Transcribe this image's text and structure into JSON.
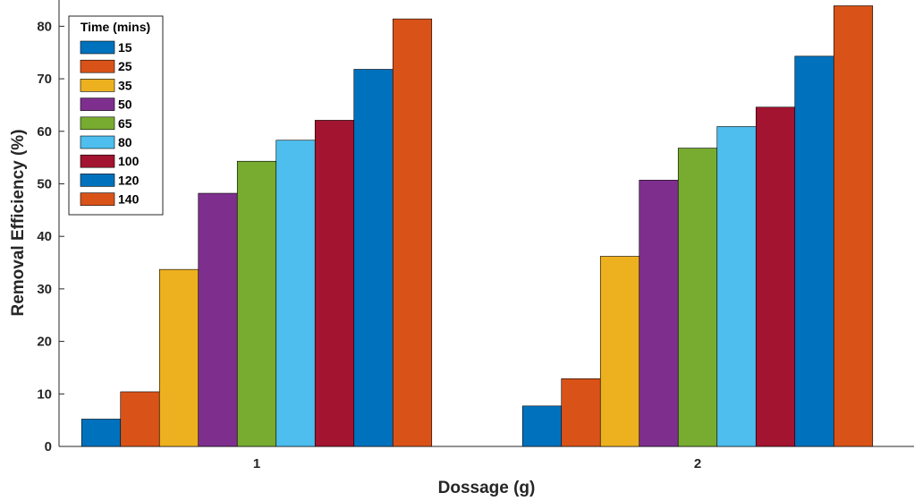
{
  "chart_data": {
    "type": "bar",
    "xlabel": "Dossage (g)",
    "ylabel": "Removal Efficiency (%)",
    "categories": [
      "1",
      "2"
    ],
    "ylim": [
      0,
      85
    ],
    "yticks": [
      0,
      10,
      20,
      30,
      40,
      50,
      60,
      70,
      80
    ],
    "grid": false,
    "legend": {
      "title": "Time (mins)",
      "placement": "top-left"
    },
    "series": [
      {
        "name": "15",
        "color": "#0072BD",
        "values": [
          5.2,
          7.7
        ]
      },
      {
        "name": "25",
        "color": "#D95319",
        "values": [
          10.4,
          12.9
        ]
      },
      {
        "name": "35",
        "color": "#EDB120",
        "values": [
          33.7,
          36.2
        ]
      },
      {
        "name": "50",
        "color": "#7E2F8E",
        "values": [
          48.2,
          50.7
        ]
      },
      {
        "name": "65",
        "color": "#77AC30",
        "values": [
          54.3,
          56.8
        ]
      },
      {
        "name": "80",
        "color": "#4DBEEE",
        "values": [
          58.3,
          60.9
        ]
      },
      {
        "name": "100",
        "color": "#A2142F",
        "values": [
          62.1,
          64.6
        ]
      },
      {
        "name": "120",
        "color": "#0072BD",
        "values": [
          71.8,
          74.3
        ]
      },
      {
        "name": "140",
        "color": "#D95319",
        "values": [
          81.4,
          83.9
        ]
      }
    ]
  }
}
